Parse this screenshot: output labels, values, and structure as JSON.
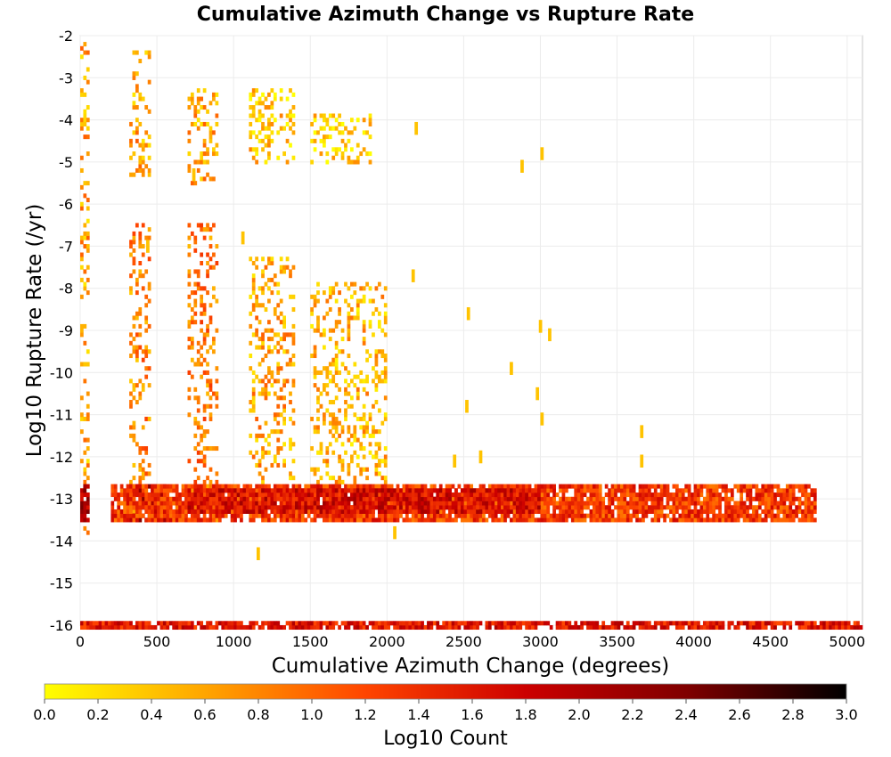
{
  "chart_data": {
    "type": "heatmap",
    "title": "Cumulative Azimuth Change vs Rupture Rate",
    "xlabel": "Cumulative Azimuth Change (degrees)",
    "ylabel": "Log10 Rupture Rate (/yr)",
    "xlim": [
      0,
      5100
    ],
    "ylim": [
      -16,
      -2
    ],
    "x_ticks": [
      0,
      500,
      1000,
      1500,
      2000,
      2500,
      3000,
      3500,
      4000,
      4500,
      5000
    ],
    "y_ticks": [
      -2,
      -3,
      -4,
      -5,
      -6,
      -7,
      -8,
      -9,
      -10,
      -11,
      -12,
      -13,
      -14,
      -15,
      -16
    ],
    "grid": true,
    "colorbar": {
      "label": "Log10 Count",
      "min": 0.0,
      "max": 3.0,
      "ticks": [
        "0.0",
        "0.2",
        "0.4",
        "0.6",
        "0.8",
        "1.0",
        "1.2",
        "1.4",
        "1.6",
        "1.8",
        "2.0",
        "2.2",
        "2.4",
        "2.6",
        "2.8",
        "3.0"
      ],
      "colors": [
        "#ffff00",
        "#ffa500",
        "#ff4500",
        "#cc0000",
        "#800000",
        "#000000"
      ],
      "position": "bottom"
    },
    "bin_width": 20,
    "bin_height": 0.1,
    "columns": [
      {
        "x_range": [
          0,
          60
        ],
        "rate_range": [
          -13.9,
          -2.1
        ],
        "log10_count": 0.6
      },
      {
        "x_range": [
          0,
          60
        ],
        "rate_range": [
          -13.5,
          -12.7
        ],
        "log10_count": 2.0
      },
      {
        "x_range": [
          320,
          460
        ],
        "rate_range": [
          -5.3,
          -2.4
        ],
        "log10_count": 0.6
      },
      {
        "x_range": [
          320,
          460
        ],
        "rate_range": [
          -13.5,
          -6.5
        ],
        "log10_count": 0.8
      },
      {
        "x_range": [
          320,
          560
        ],
        "rate_range": [
          -13.5,
          -12.7
        ],
        "log10_count": 2.0
      },
      {
        "x_range": [
          700,
          900
        ],
        "rate_range": [
          -5.5,
          -3.3
        ],
        "log10_count": 0.6
      },
      {
        "x_range": [
          700,
          900
        ],
        "rate_range": [
          -13.5,
          -6.5
        ],
        "log10_count": 0.9
      },
      {
        "x_range": [
          1100,
          1400
        ],
        "rate_range": [
          -5.0,
          -3.3
        ],
        "log10_count": 0.4
      },
      {
        "x_range": [
          1100,
          1400
        ],
        "rate_range": [
          -12.6,
          -7.3
        ],
        "log10_count": 0.6
      },
      {
        "x_range": [
          1500,
          1900
        ],
        "rate_range": [
          -5.0,
          -3.9
        ],
        "log10_count": 0.3
      },
      {
        "x_range": [
          1500,
          2000
        ],
        "rate_range": [
          -12.6,
          -7.9
        ],
        "log10_count": 0.5
      }
    ],
    "bands": [
      {
        "x_range": [
          200,
          4800
        ],
        "rate_range": [
          -13.5,
          -12.7
        ],
        "log10_count": 1.3
      },
      {
        "x_range": [
          700,
          3000
        ],
        "rate_range": [
          -13.3,
          -12.8
        ],
        "log10_count": 1.7
      },
      {
        "x_range": [
          0,
          5100
        ],
        "rate_range": [
          -16.05,
          -15.9
        ],
        "log10_count": 1.6
      }
    ],
    "scattered_points": [
      {
        "x": 2870,
        "rate": -5.1
      },
      {
        "x": 3000,
        "rate": -4.8
      },
      {
        "x": 2160,
        "rate": -7.7
      },
      {
        "x": 2520,
        "rate": -8.6
      },
      {
        "x": 3050,
        "rate": -9.1
      },
      {
        "x": 2990,
        "rate": -8.9
      },
      {
        "x": 2800,
        "rate": -9.9
      },
      {
        "x": 2970,
        "rate": -10.5
      },
      {
        "x": 2510,
        "rate": -10.8
      },
      {
        "x": 3000,
        "rate": -11.1
      },
      {
        "x": 3650,
        "rate": -11.4
      },
      {
        "x": 3650,
        "rate": -12.1
      },
      {
        "x": 2180,
        "rate": -4.2
      },
      {
        "x": 2040,
        "rate": -13.8
      },
      {
        "x": 1150,
        "rate": -14.3
      },
      {
        "x": 1050,
        "rate": -6.8
      },
      {
        "x": 430,
        "rate": -7.0
      },
      {
        "x": 730,
        "rate": -5.3
      },
      {
        "x": 2430,
        "rate": -12.1
      },
      {
        "x": 2600,
        "rate": -12.0
      }
    ]
  }
}
